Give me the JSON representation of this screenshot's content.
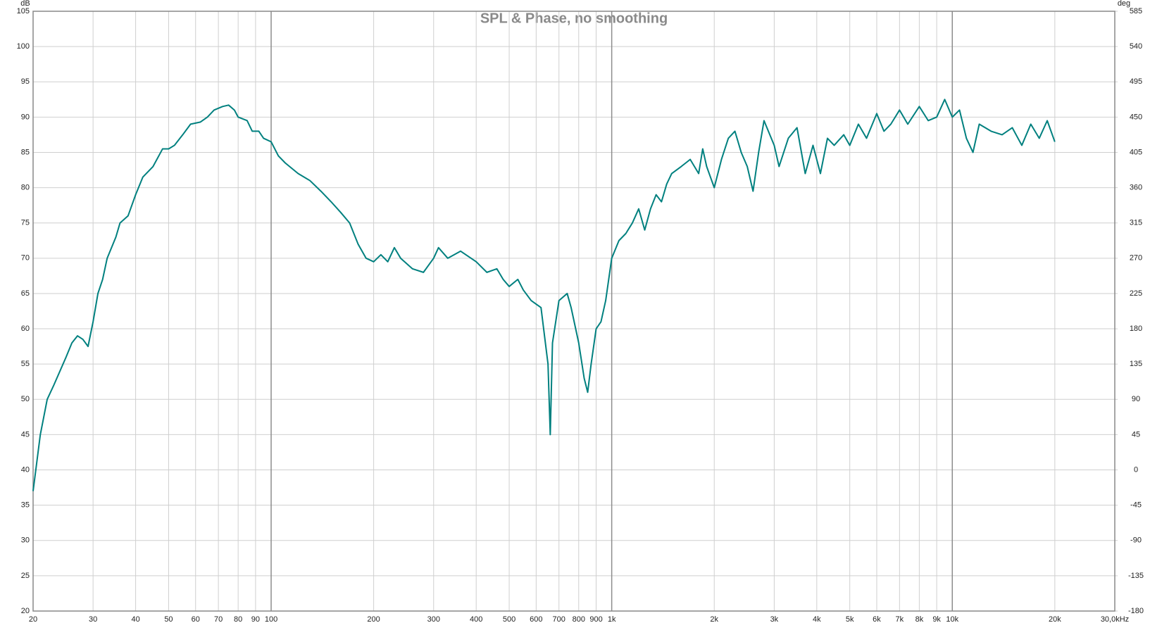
{
  "chart_data": {
    "type": "line",
    "title": "SPL & Phase, no smoothing",
    "y_label": "dB",
    "y2_label": "deg",
    "log_x": true,
    "grid": true,
    "xlim": [
      20,
      30000
    ],
    "ylim": [
      20,
      105
    ],
    "y2lim": [
      -180,
      585
    ],
    "xticks": [
      20,
      30,
      40,
      50,
      60,
      70,
      80,
      90,
      100,
      200,
      300,
      400,
      500,
      600,
      700,
      800,
      900,
      {
        "value": 1000,
        "label": "1k"
      },
      {
        "value": 2000,
        "label": "2k"
      },
      {
        "value": 3000,
        "label": "3k"
      },
      {
        "value": 4000,
        "label": "4k"
      },
      {
        "value": 5000,
        "label": "5k"
      },
      {
        "value": 6000,
        "label": "6k"
      },
      {
        "value": 7000,
        "label": "7k"
      },
      {
        "value": 8000,
        "label": "8k"
      },
      {
        "value": 9000,
        "label": "9k"
      },
      {
        "value": 10000,
        "label": "10k"
      },
      {
        "value": 20000,
        "label": "20k"
      },
      {
        "value": 30000,
        "label": "30,0kHz"
      }
    ],
    "yticks": [
      20,
      25,
      30,
      35,
      40,
      45,
      50,
      55,
      60,
      65,
      70,
      75,
      80,
      85,
      90,
      95,
      100,
      105
    ],
    "y2ticks": [
      -180,
      -135,
      -90,
      -45,
      0,
      45,
      90,
      135,
      180,
      225,
      270,
      315,
      360,
      405,
      450,
      495,
      540,
      585
    ],
    "x": [
      20,
      21,
      22,
      23,
      25,
      26,
      27,
      28,
      29,
      30,
      31,
      32,
      33,
      35,
      36,
      38,
      40,
      42,
      45,
      48,
      50,
      52,
      55,
      58,
      62,
      65,
      68,
      72,
      75,
      78,
      80,
      85,
      88,
      92,
      95,
      100,
      105,
      110,
      120,
      130,
      140,
      150,
      160,
      170,
      180,
      190,
      200,
      210,
      220,
      230,
      240,
      260,
      280,
      300,
      310,
      330,
      360,
      400,
      430,
      460,
      480,
      500,
      530,
      550,
      580,
      620,
      650,
      660,
      670,
      700,
      740,
      760,
      800,
      830,
      850,
      870,
      900,
      930,
      960,
      1000,
      1050,
      1100,
      1150,
      1200,
      1250,
      1300,
      1350,
      1400,
      1450,
      1500,
      1600,
      1700,
      1800,
      1850,
      1900,
      2000,
      2100,
      2200,
      2300,
      2400,
      2500,
      2600,
      2700,
      2800,
      3000,
      3100,
      3300,
      3500,
      3700,
      3900,
      4100,
      4300,
      4500,
      4800,
      5000,
      5300,
      5600,
      6000,
      6300,
      6600,
      7000,
      7400,
      8000,
      8500,
      9000,
      9500,
      10000,
      10500,
      11000,
      11500,
      12000,
      13000,
      14000,
      15000,
      16000,
      17000,
      18000,
      19000,
      20000
    ],
    "series": [
      {
        "color": "#00807f",
        "values": [
          37,
          45,
          50,
          52,
          56,
          58,
          59,
          58.5,
          57.5,
          61,
          65,
          67,
          70,
          73,
          75,
          76,
          79,
          81.5,
          83,
          85.5,
          85.5,
          86,
          87.5,
          89,
          89.3,
          90,
          91,
          91.5,
          91.7,
          91,
          90,
          89.5,
          88,
          88,
          87,
          86.5,
          84.5,
          83.5,
          82,
          81,
          79.5,
          78,
          76.5,
          75,
          72,
          70,
          69.5,
          70.5,
          69.5,
          71.5,
          70,
          68.5,
          68,
          70,
          71.5,
          70,
          71,
          69.5,
          68,
          68.5,
          67,
          66,
          67,
          65.5,
          64,
          63,
          55,
          45,
          58,
          64,
          65,
          63,
          58,
          53,
          51,
          55,
          60,
          61,
          64,
          70,
          72.5,
          73.5,
          75,
          77,
          74,
          77,
          79,
          78,
          80.5,
          82,
          83,
          84,
          82,
          85.5,
          83,
          80,
          84,
          87,
          88,
          85,
          83,
          79.5,
          85,
          89.5,
          86,
          83,
          87,
          88.5,
          82,
          86,
          82,
          87,
          86,
          87.5,
          86,
          89,
          87,
          90.5,
          88,
          89,
          91,
          89,
          91.5,
          89.5,
          90,
          92.5,
          90,
          91,
          87,
          85,
          89,
          88,
          87.5,
          88.5,
          86,
          89,
          87,
          89.5,
          86.5
        ]
      }
    ]
  }
}
